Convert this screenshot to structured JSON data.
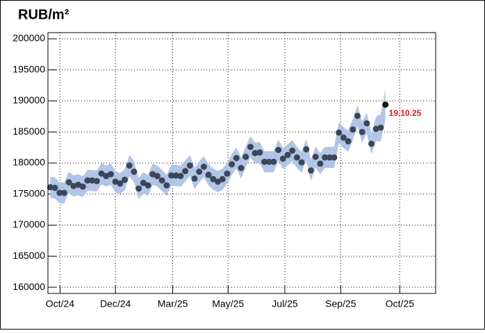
{
  "chart_data": {
    "type": "scatter",
    "title": "RUB/m²",
    "annotation": "19.10.25",
    "annotation_color": "#e8141c",
    "x": [
      0,
      1,
      2,
      3,
      4,
      5,
      6,
      7,
      8,
      9,
      10,
      11,
      12,
      13,
      14,
      15,
      16,
      17,
      18,
      19,
      20,
      21,
      22,
      23,
      24,
      25,
      26,
      27,
      28,
      29,
      30,
      31,
      32,
      33,
      34,
      35,
      36,
      37,
      38,
      39,
      40,
      41,
      42,
      43,
      44,
      45,
      46,
      47,
      48,
      49,
      50,
      51,
      52,
      53,
      54,
      55,
      56,
      57,
      58,
      59,
      60,
      61,
      62,
      63,
      64,
      65,
      66,
      67,
      68,
      69,
      70,
      71,
      72
    ],
    "series": [
      {
        "color": "#3b4658",
        "last_color": "#111111",
        "band_color": "#b3c5e6",
        "values": [
          176100,
          176000,
          175200,
          175200,
          176900,
          176300,
          176500,
          176200,
          177200,
          177200,
          177100,
          178300,
          177900,
          178200,
          177000,
          176700,
          177300,
          179600,
          178600,
          175900,
          176800,
          176400,
          178200,
          177900,
          177200,
          176400,
          178000,
          178000,
          177900,
          178700,
          179600,
          177500,
          178600,
          179400,
          178100,
          177400,
          177000,
          177400,
          178300,
          179800,
          180800,
          179200,
          181000,
          182600,
          181600,
          181700,
          180200,
          180200,
          180200,
          182100,
          180700,
          181300,
          182000,
          180900,
          180100,
          182200,
          178800,
          181000,
          179900,
          180900,
          180900,
          180900,
          184900,
          184100,
          183500,
          185400,
          187600,
          185000,
          186400,
          183100,
          185500,
          185700,
          189400
        ],
        "errors": [
          1700,
          1700,
          1700,
          1700,
          1700,
          1700,
          1700,
          1700,
          1700,
          1700,
          1700,
          1700,
          1700,
          1700,
          1700,
          1700,
          1700,
          1700,
          1700,
          1700,
          1700,
          1700,
          1700,
          1700,
          1700,
          1700,
          1700,
          1700,
          1700,
          1700,
          1700,
          1700,
          1700,
          1700,
          1700,
          1700,
          1700,
          1700,
          1700,
          1700,
          1700,
          1700,
          1700,
          1700,
          1700,
          1700,
          1700,
          1700,
          1700,
          1700,
          1700,
          1700,
          1700,
          1700,
          1700,
          1700,
          1700,
          1700,
          1700,
          1700,
          1700,
          1700,
          1700,
          1700,
          1700,
          1700,
          1700,
          1700,
          1700,
          1700,
          2000,
          2200,
          2500
        ]
      }
    ],
    "xlim": [
      -0.5,
      82.8
    ],
    "xticks": [
      {
        "value": 2.1,
        "label": "Oct/24"
      },
      {
        "value": 14.0,
        "label": "Dec/24"
      },
      {
        "value": 26.3,
        "label": "Mar/25"
      },
      {
        "value": 38.2,
        "label": "May/25"
      },
      {
        "value": 50.4,
        "label": "Jul/25"
      },
      {
        "value": 62.4,
        "label": "Sep/25"
      },
      {
        "value": 75.1,
        "label": "Oct/25"
      }
    ],
    "ylim": [
      159000,
      201000
    ],
    "yticks": [
      160000,
      165000,
      170000,
      175000,
      180000,
      185000,
      190000,
      195000,
      200000
    ],
    "grid": true
  }
}
